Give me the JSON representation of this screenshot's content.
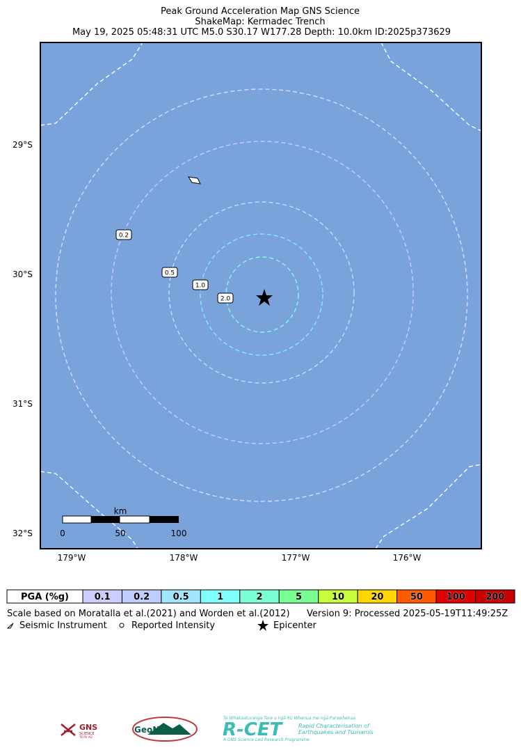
{
  "header": {
    "title": "Peak Ground Acceleration Map GNS Science",
    "subtitle": "ShakeMap: Kermadec Trench",
    "event": "May 19, 2025 05:48:31 UTC M5.0 S30.17 W177.28 Depth: 10.0km ID:2025p373629"
  },
  "map": {
    "lat_labels": [
      "29°S",
      "30°S",
      "31°S",
      "32°S"
    ],
    "lon_labels": [
      "179°W",
      "178°W",
      "177°W",
      "176°W"
    ],
    "contour_labels": [
      "0.2",
      "0.5",
      "1.0",
      "2.0"
    ],
    "scale_bar": {
      "unit": "km",
      "ticks": [
        "0",
        "50",
        "100"
      ]
    },
    "water_color": "#7aa2db"
  },
  "legend": {
    "title": "PGA (%g)",
    "bins": [
      {
        "label": "0.1",
        "color": "#ccccff"
      },
      {
        "label": "0.2",
        "color": "#bfccff"
      },
      {
        "label": "0.5",
        "color": "#a0e6ff"
      },
      {
        "label": "1",
        "color": "#80ffff"
      },
      {
        "label": "2",
        "color": "#7affd4"
      },
      {
        "label": "5",
        "color": "#7aff93"
      },
      {
        "label": "10",
        "color": "#c8ff3c"
      },
      {
        "label": "20",
        "color": "#ffd500"
      },
      {
        "label": "50",
        "color": "#ff5a00"
      },
      {
        "label": "100",
        "color": "#e00000"
      },
      {
        "label": "200",
        "color": "#c80000"
      }
    ]
  },
  "notes": {
    "reference": "Scale based on Moratalla et al.(2021) and Worden et al.(2012)",
    "version": "Version 9: Processed 2025-05-19T11:49:25Z",
    "symbols": [
      "Seismic Instrument",
      "Reported Intensity",
      "Epicenter"
    ]
  },
  "logos": {
    "gns": "GNS",
    "gns_sub": "SCIENCE",
    "gns_maori": "TE PŪ AO",
    "geonet": "GeoNet",
    "rcet": "R-CET",
    "rcet_maori": "Te Whakaaturanga Tere o ngā Rū Whenua me ngā Parawhenua",
    "rcet_line1": "Rapid Characterisation of",
    "rcet_line2": "Earthquakes and Tsunamis",
    "rcet_footer": "A GNS Science Led Research Programme"
  }
}
